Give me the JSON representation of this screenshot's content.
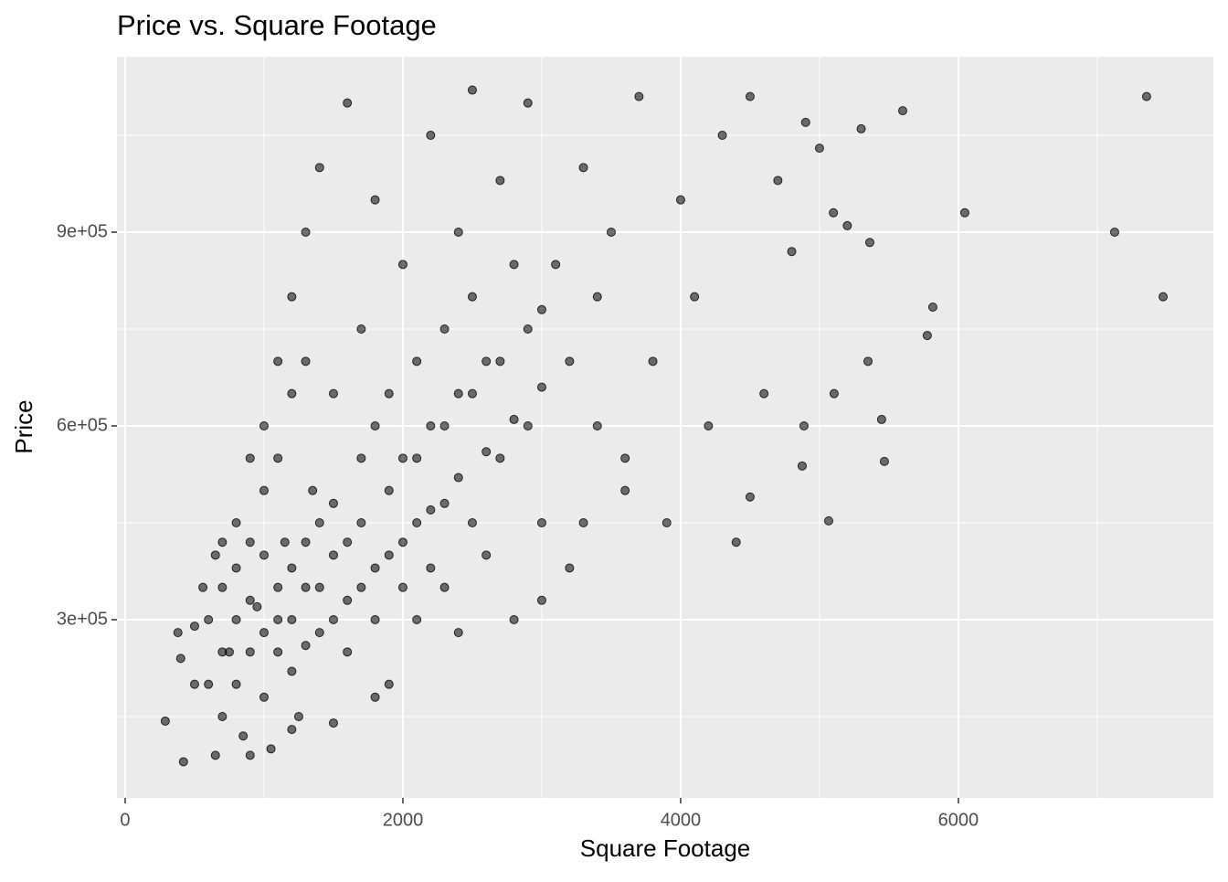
{
  "chart_data": {
    "type": "scatter",
    "title": "Price vs. Square Footage",
    "x_label": "Square Footage",
    "y_label": "Price",
    "color": "#000000",
    "alpha": 0.55,
    "grid": true,
    "xlim": [
      -59,
      7836
    ],
    "ylim": [
      24057,
      1171698
    ],
    "xticks": [
      0,
      2000,
      4000,
      6000
    ],
    "yticks": [
      {
        "value": 300000,
        "label": "3e+05"
      },
      {
        "value": 600000,
        "label": "6e+05"
      },
      {
        "value": 900000,
        "label": "9e+05"
      }
    ],
    "x": [
      7355,
      7125,
      7474,
      6046,
      5816,
      5776,
      5467,
      5447,
      5599,
      5362,
      5349,
      5066,
      5105,
      4888,
      4875,
      289,
      700,
      800,
      900,
      1000,
      1100,
      1200,
      1300,
      1400,
      1500,
      1600,
      1700,
      1800,
      1900,
      2000,
      2100,
      2200,
      2300,
      2400,
      2500,
      2600,
      2700,
      2800,
      2900,
      3000,
      600,
      650,
      700,
      750,
      800,
      850,
      900,
      950,
      1000,
      1050,
      1100,
      1150,
      1200,
      1250,
      1300,
      1350,
      1400,
      1500,
      1600,
      1700,
      1800,
      1900,
      2000,
      2100,
      2200,
      2300,
      2400,
      2500,
      2600,
      2700,
      2800,
      2900,
      3000,
      3100,
      3200,
      3300,
      3400,
      3500,
      3600,
      3700,
      3800,
      3900,
      4000,
      4100,
      4200,
      4300,
      4400,
      4500,
      4500,
      4600,
      4700,
      4800,
      4900,
      5000,
      5100,
      5200,
      5300,
      380,
      420,
      500,
      560,
      650,
      900,
      1200,
      1500,
      1800,
      2400,
      3000,
      3300,
      3600,
      400,
      500,
      800,
      900,
      1000,
      1000,
      1100,
      1100,
      1200,
      1200,
      1300,
      1300,
      1400,
      1400,
      1500,
      1500,
      1600,
      1600,
      1700,
      1700,
      1800,
      1800,
      1900,
      1900,
      2000,
      2000,
      2100,
      2100,
      2200,
      2200,
      2300,
      2300,
      2400,
      2500,
      2500,
      2600,
      2700,
      2800,
      2900,
      3000,
      3200,
      3400,
      900,
      1000,
      1100,
      1200,
      1300,
      700,
      800,
      700,
      600
    ],
    "values": [
      1110000,
      900000,
      800000,
      930000,
      784000,
      740000,
      545000,
      610000,
      1088000,
      884000,
      700000,
      453000,
      650000,
      600000,
      538000,
      143000,
      150000,
      200000,
      250000,
      180000,
      300000,
      220000,
      350000,
      280000,
      400000,
      330000,
      450000,
      380000,
      500000,
      420000,
      550000,
      470000,
      600000,
      520000,
      650000,
      560000,
      700000,
      610000,
      750000,
      660000,
      300000,
      400000,
      350000,
      250000,
      450000,
      120000,
      550000,
      320000,
      600000,
      100000,
      700000,
      420000,
      800000,
      150000,
      900000,
      500000,
      1000000,
      650000,
      1100000,
      750000,
      950000,
      200000,
      850000,
      300000,
      1050000,
      350000,
      900000,
      1120000,
      400000,
      980000,
      300000,
      1100000,
      450000,
      850000,
      380000,
      1000000,
      600000,
      900000,
      500000,
      1110000,
      700000,
      450000,
      950000,
      800000,
      600000,
      1050000,
      420000,
      1110000,
      490000,
      650000,
      980000,
      870000,
      1070000,
      1030000,
      930000,
      910000,
      1060000,
      280000,
      80000,
      200000,
      350000,
      90000,
      90000,
      130000,
      140000,
      180000,
      280000,
      330000,
      450000,
      550000,
      240000,
      290000,
      300000,
      330000,
      280000,
      400000,
      350000,
      250000,
      380000,
      300000,
      420000,
      260000,
      450000,
      350000,
      300000,
      480000,
      420000,
      250000,
      550000,
      350000,
      600000,
      300000,
      400000,
      650000,
      550000,
      350000,
      450000,
      700000,
      380000,
      600000,
      480000,
      750000,
      650000,
      450000,
      800000,
      700000,
      550000,
      850000,
      600000,
      780000,
      700000,
      800000,
      420000,
      500000,
      550000,
      650000,
      700000,
      420000,
      380000,
      250000,
      200000
    ]
  }
}
